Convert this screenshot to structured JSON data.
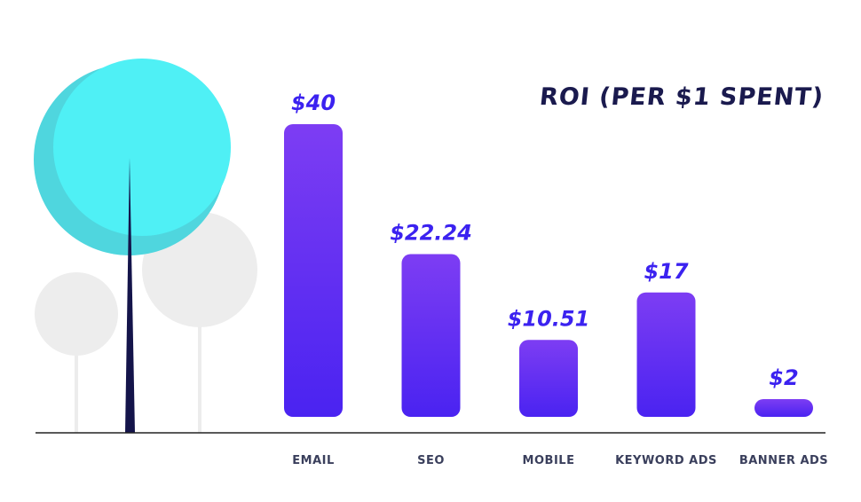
{
  "chart_data": {
    "type": "bar",
    "title": "ROI (PER $1 SPENT)",
    "categories": [
      "EMAIL",
      "SEO",
      "MOBILE",
      "KEYWORD ADS",
      "BANNER ADS"
    ],
    "values": [
      40,
      22.24,
      10.51,
      17,
      2
    ],
    "value_labels": [
      "$40",
      "$22.24",
      "$10.51",
      "$17",
      "$2"
    ],
    "ylim": [
      0,
      40
    ],
    "grid": false,
    "legend": "none",
    "colors": {
      "bar_top": "#7b3ff2",
      "bar_bottom": "#4b22f2",
      "label": "#3b22f0",
      "axis": "#222222"
    }
  }
}
